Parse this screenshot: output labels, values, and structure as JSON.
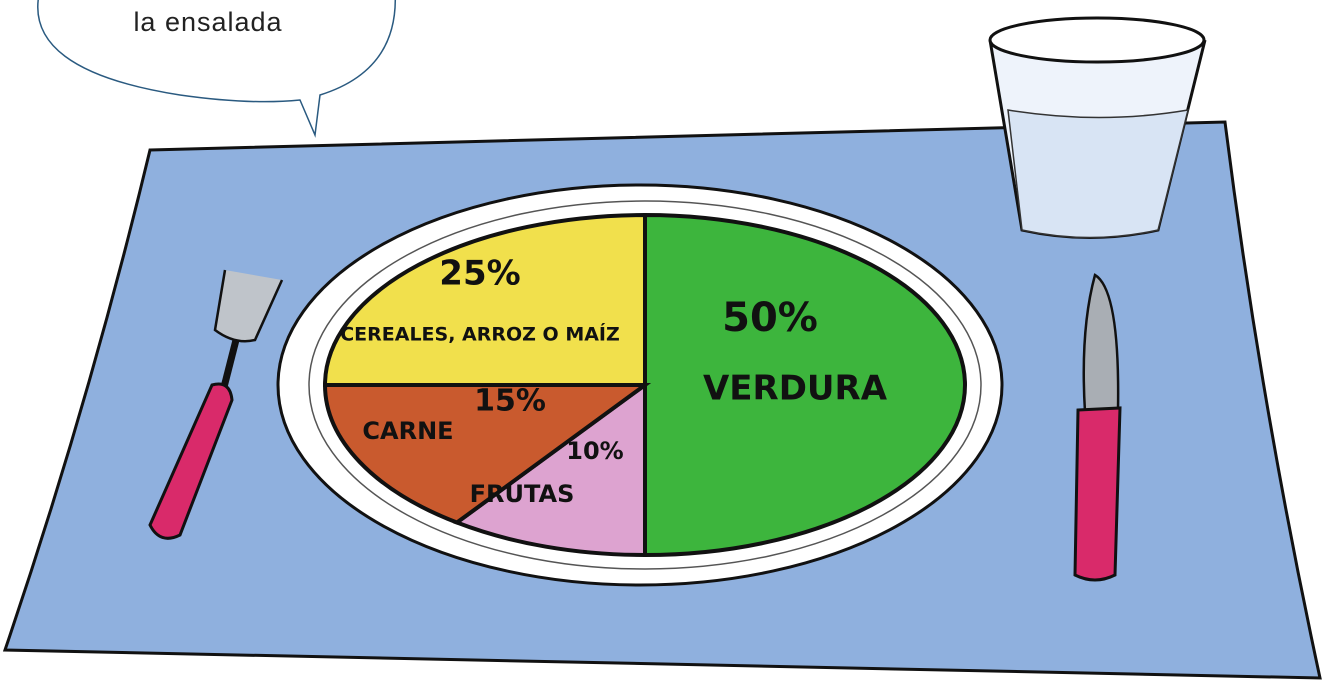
{
  "speech_bubble": {
    "text": "la ensalada"
  },
  "chart_data": {
    "type": "pie",
    "categories": [
      "VERDURA",
      "FRUTAS",
      "CARNE",
      "CEREALES, ARROZ O MAÍZ"
    ],
    "values": [
      50,
      10,
      15,
      25
    ],
    "value_labels": [
      "50%",
      "10%",
      "15%",
      "25%"
    ],
    "colors": [
      "#3db53d",
      "#dda3d0",
      "#c95a2e",
      "#f1e04c"
    ]
  }
}
